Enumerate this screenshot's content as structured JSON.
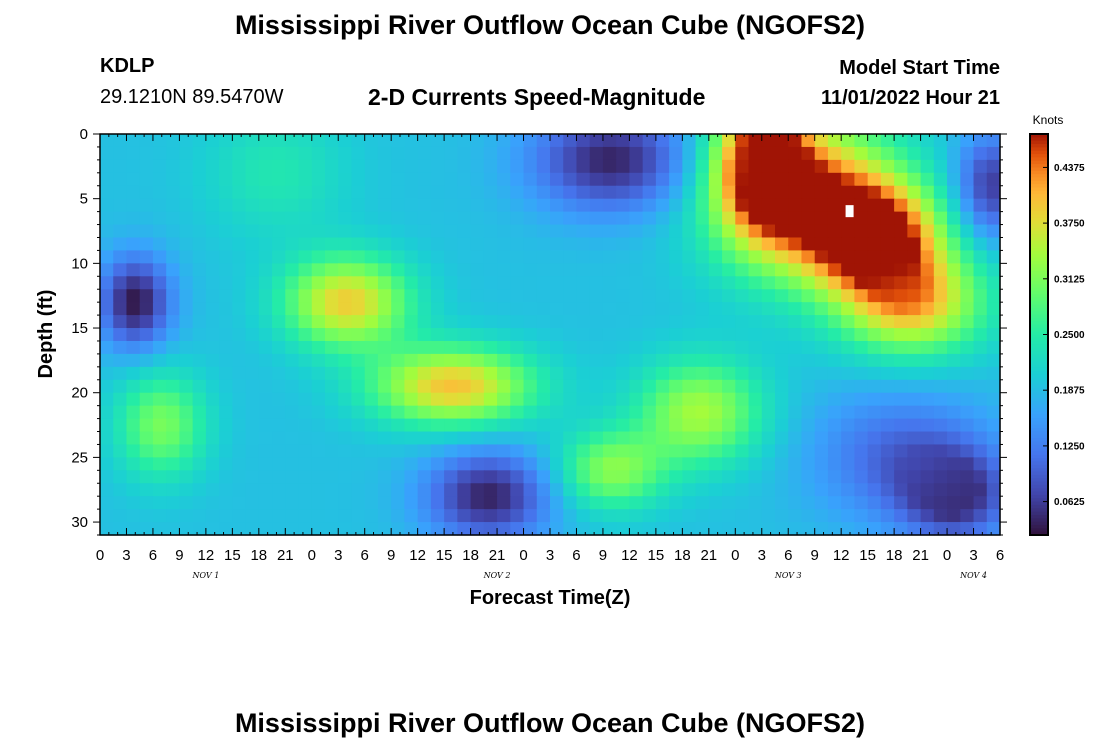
{
  "header": {
    "title": "Mississippi River Outflow Ocean Cube (NGOFS2)",
    "station_id": "KDLP",
    "station_coords": "29.1210N  89.5470W",
    "subtitle": "2-D Currents Speed-Magnitude",
    "model_start_label": "Model Start Time",
    "model_start_time": "11/01/2022 Hour 21"
  },
  "footer": {
    "title": "Mississippi River Outflow Ocean Cube (NGOFS2)"
  },
  "chart_data": {
    "type": "heatmap",
    "title": "2-D Currents Speed-Magnitude",
    "xlabel": "Forecast Time(Z)",
    "ylabel": "Depth (ft)",
    "x_tick_labels": [
      "0",
      "3",
      "6",
      "9",
      "12",
      "15",
      "18",
      "21",
      "0",
      "3",
      "6",
      "9",
      "12",
      "15",
      "18",
      "21",
      "0",
      "3",
      "6",
      "9",
      "12",
      "15",
      "18",
      "21",
      "0",
      "3",
      "6",
      "9",
      "12",
      "15",
      "18",
      "21",
      "0",
      "3",
      "6"
    ],
    "x_range_hours": [
      0,
      102
    ],
    "day_labels": [
      {
        "label": "NOV 1",
        "hour": 12
      },
      {
        "label": "NOV 2",
        "hour": 45
      },
      {
        "label": "NOV 3",
        "hour": 78
      },
      {
        "label": "NOV 4",
        "hour": 99
      }
    ],
    "y_ticks": [
      0,
      5,
      10,
      15,
      20,
      25,
      30
    ],
    "y_range_ft": [
      0,
      31
    ],
    "y_inverted": true,
    "colorbar": {
      "units": "Knots",
      "min": 0.025,
      "max": 0.475,
      "ticks": [
        "0.4375",
        "0.3750",
        "0.3125",
        "0.2500",
        "0.1875",
        "0.1250",
        "0.0625"
      ]
    },
    "features": [
      {
        "hour": 80,
        "depth": 5,
        "value": 0.46,
        "spread_h": 10,
        "spread_d": 6
      },
      {
        "hour": 92,
        "depth": 13,
        "value": 0.4,
        "spread_h": 8,
        "spread_d": 4
      },
      {
        "hour": 88,
        "depth": 8,
        "value": 0.46,
        "spread_h": 7,
        "spread_d": 4
      },
      {
        "hour": 75,
        "depth": 2,
        "value": 0.44,
        "spread_h": 5,
        "spread_d": 5
      },
      {
        "hour": 28,
        "depth": 13,
        "value": 0.39,
        "spread_h": 7,
        "spread_d": 3.5
      },
      {
        "hour": 40,
        "depth": 19.5,
        "value": 0.4,
        "spread_h": 9,
        "spread_d": 3
      },
      {
        "hour": 68,
        "depth": 21.5,
        "value": 0.34,
        "spread_h": 7,
        "spread_d": 4
      },
      {
        "hour": 58,
        "depth": 26,
        "value": 0.32,
        "spread_h": 6,
        "spread_d": 3
      },
      {
        "hour": 7,
        "depth": 22.5,
        "value": 0.31,
        "spread_h": 5,
        "spread_d": 4
      },
      {
        "hour": 4,
        "depth": 13,
        "value": 0.03,
        "spread_h": 4,
        "spread_d": 3.5
      },
      {
        "hour": 58,
        "depth": 2,
        "value": 0.04,
        "spread_h": 9,
        "spread_d": 4
      },
      {
        "hour": 44,
        "depth": 28,
        "value": 0.04,
        "spread_h": 7,
        "spread_d": 3.5
      },
      {
        "hour": 97,
        "depth": 28,
        "value": 0.06,
        "spread_h": 6,
        "spread_d": 3.5
      },
      {
        "hour": 101,
        "depth": 4,
        "value": 0.06,
        "spread_h": 4,
        "spread_d": 4
      },
      {
        "hour": 91,
        "depth": 25,
        "value": 0.1,
        "spread_h": 10,
        "spread_d": 5
      },
      {
        "hour": 20,
        "depth": 3,
        "value": 0.24,
        "spread_h": 8,
        "spread_d": 5
      }
    ],
    "background_value": 0.19
  }
}
